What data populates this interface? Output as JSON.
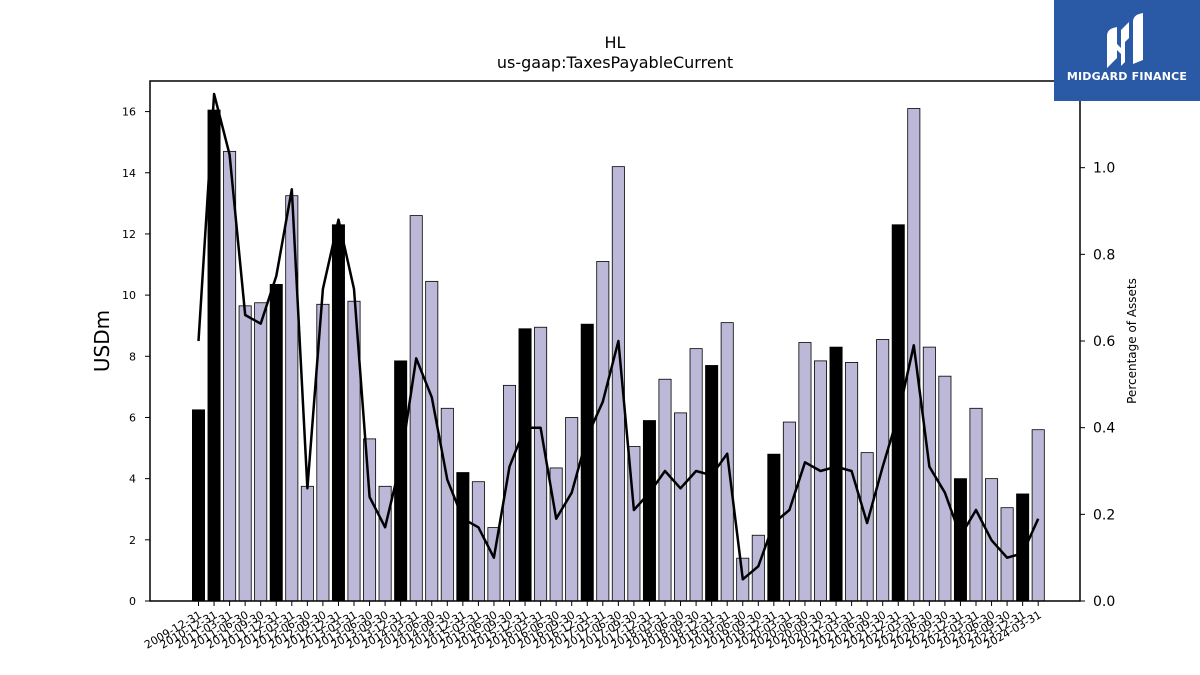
{
  "brand": {
    "name": "MIDGARD FINANCE",
    "logo_icon": "midgard-m-logo-icon",
    "bg_color": "#2a5aa6"
  },
  "chart_data": {
    "type": "bar",
    "title": "HL",
    "subtitle": "us-gaap:TaxesPayableCurrent",
    "ylabel": "USDm",
    "y2label": "Percentage of Assets",
    "ylim": [
      0,
      17
    ],
    "y2lim": [
      0,
      1.2
    ],
    "yticks": [
      0,
      2,
      4,
      6,
      8,
      10,
      12,
      14,
      16
    ],
    "y2ticks": [
      0.0,
      0.2,
      0.4,
      0.6,
      0.8,
      1.0
    ],
    "y2tick_labels": [
      "0.0",
      "0.2",
      "0.4",
      "0.6",
      "0.8",
      "1.0"
    ],
    "grid": false,
    "colors": {
      "annual": "#000000",
      "quarterly": "#bcb8d8",
      "line": "#000000"
    },
    "categories": [
      "2009-12-31",
      "2010-12-31",
      "2011-03-31",
      "2011-06-30",
      "2011-09-30",
      "2011-12-31",
      "2012-03-31",
      "2012-06-30",
      "2012-09-30",
      "2012-12-31",
      "2013-03-31",
      "2013-06-30",
      "2013-09-30",
      "2013-12-31",
      "2014-03-31",
      "2014-06-30",
      "2014-09-30",
      "2014-12-31",
      "2015-03-31",
      "2015-06-30",
      "2015-09-30",
      "2015-12-31",
      "2016-03-31",
      "2016-06-30",
      "2016-09-30",
      "2016-12-31",
      "2017-03-31",
      "2017-06-30",
      "2017-09-30",
      "2017-12-31",
      "2018-03-31",
      "2018-06-30",
      "2018-09-30",
      "2018-12-31",
      "2019-03-31",
      "2019-06-30",
      "2019-09-30",
      "2019-12-31",
      "2020-03-31",
      "2020-06-30",
      "2020-09-30",
      "2020-12-31",
      "2021-03-31",
      "2021-06-30",
      "2021-09-30",
      "2021-12-31",
      "2022-03-31",
      "2022-06-30",
      "2022-09-30",
      "2022-12-31",
      "2023-03-31",
      "2023-06-30",
      "2023-09-30",
      "2023-12-31",
      "2024-03-31"
    ],
    "annual": [
      1,
      1,
      0,
      0,
      0,
      1,
      0,
      0,
      0,
      1,
      0,
      0,
      0,
      1,
      0,
      0,
      0,
      1,
      0,
      0,
      0,
      1,
      0,
      0,
      0,
      1,
      0,
      0,
      0,
      1,
      0,
      0,
      0,
      1,
      0,
      0,
      0,
      1,
      0,
      0,
      0,
      1,
      0,
      0,
      0,
      1,
      0,
      0,
      0,
      1,
      0,
      0,
      0,
      1,
      0
    ],
    "values": [
      6.25,
      16.05,
      14.7,
      9.65,
      9.75,
      10.35,
      13.25,
      3.75,
      9.7,
      12.3,
      9.8,
      5.3,
      3.75,
      7.85,
      12.6,
      10.45,
      6.3,
      4.2,
      3.9,
      2.4,
      7.05,
      8.9,
      8.95,
      4.35,
      6.0,
      9.05,
      11.1,
      14.2,
      5.05,
      5.9,
      7.25,
      6.15,
      8.25,
      7.7,
      9.1,
      1.4,
      2.15,
      4.8,
      5.85,
      8.45,
      7.85,
      8.3,
      7.8,
      4.85,
      8.55,
      12.3,
      16.1,
      8.3,
      7.35,
      4.0,
      6.3,
      4.0,
      3.05,
      3.5,
      5.6
    ],
    "series": [
      {
        "axis": "right",
        "values": [
          0.6,
          1.17,
          1.03,
          0.66,
          0.64,
          0.75,
          0.95,
          0.26,
          0.72,
          0.88,
          0.72,
          0.24,
          0.17,
          0.32,
          0.56,
          0.47,
          0.28,
          0.19,
          0.17,
          0.1,
          0.31,
          0.4,
          0.4,
          0.19,
          0.25,
          0.38,
          0.46,
          0.6,
          0.21,
          0.25,
          0.3,
          0.26,
          0.3,
          0.29,
          0.34,
          0.05,
          0.08,
          0.18,
          0.21,
          0.32,
          0.3,
          0.31,
          0.3,
          0.18,
          0.31,
          0.43,
          0.59,
          0.31,
          0.25,
          0.15,
          0.21,
          0.14,
          0.1,
          0.11,
          0.19
        ]
      }
    ]
  }
}
